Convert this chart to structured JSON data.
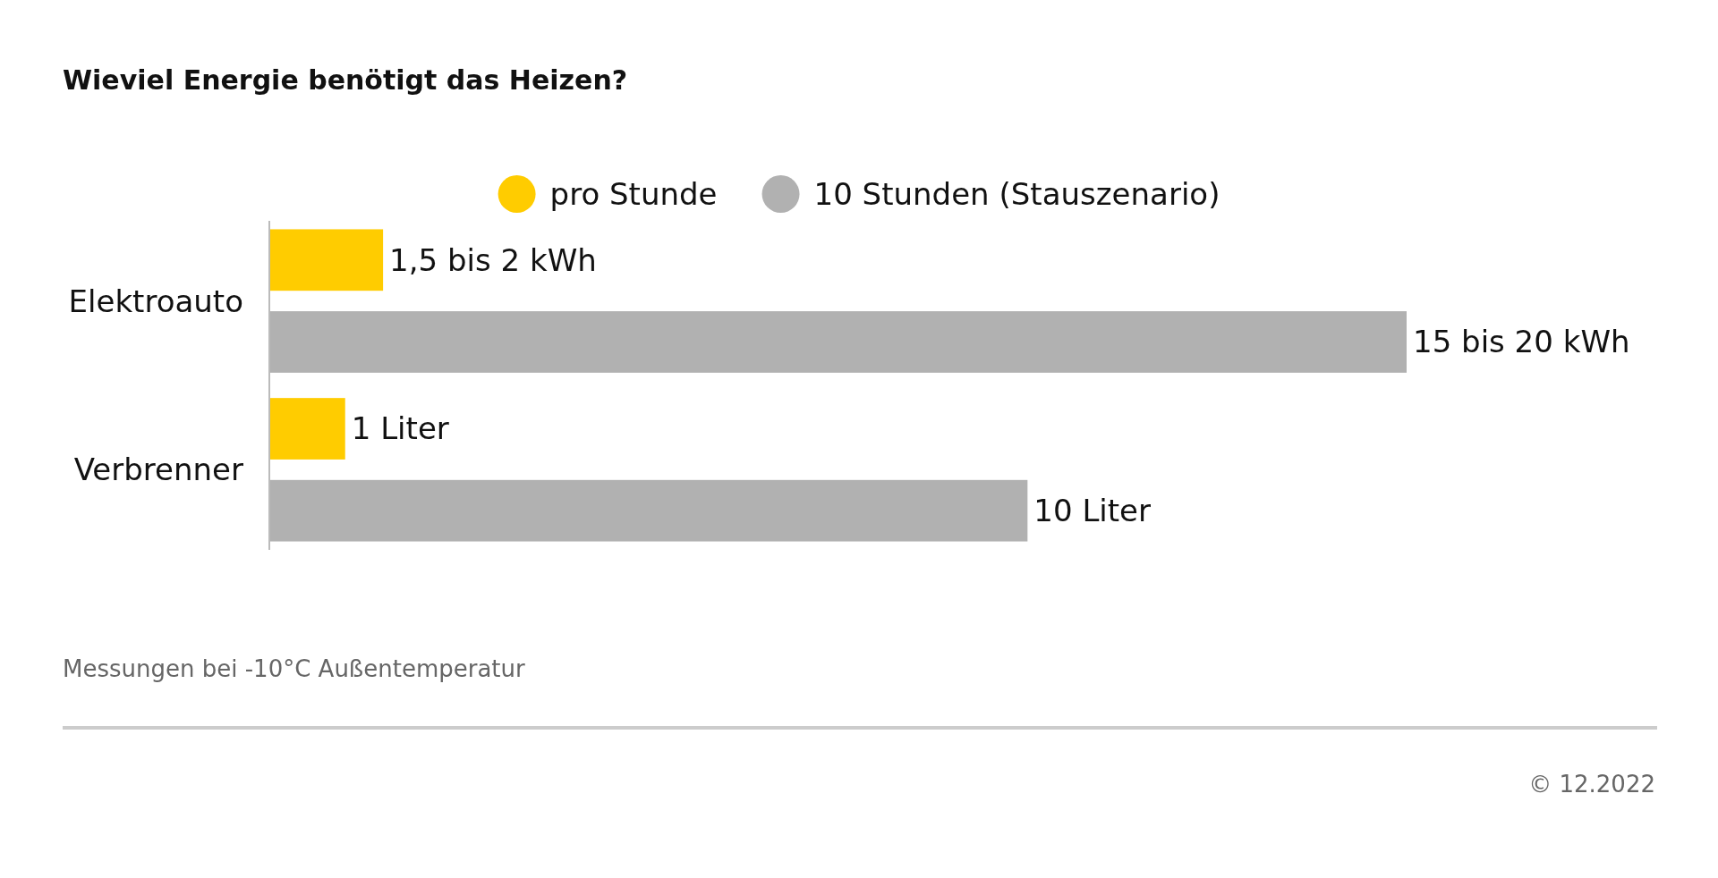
{
  "chart_data": {
    "type": "bar",
    "orientation": "horizontal",
    "title": "Wieviel Energie benötigt das Heizen?",
    "categories": [
      "Elektroauto",
      "Verbrenner"
    ],
    "series": [
      {
        "name": "pro Stunde",
        "color": "#ffcc00",
        "values": [
          1.5,
          1
        ],
        "value_labels": [
          "1,5 bis 2 kWh",
          "1 Liter"
        ]
      },
      {
        "name": "10 Stunden (Stauszenario)",
        "color": "#b1b1b1",
        "values": [
          15,
          10
        ],
        "value_labels": [
          "15 bis 20 kWh",
          "10 Liter"
        ]
      }
    ],
    "legend": "top",
    "annotations": [
      "Messungen bei -10°C Außentemperatur",
      "© 12.2022"
    ]
  }
}
